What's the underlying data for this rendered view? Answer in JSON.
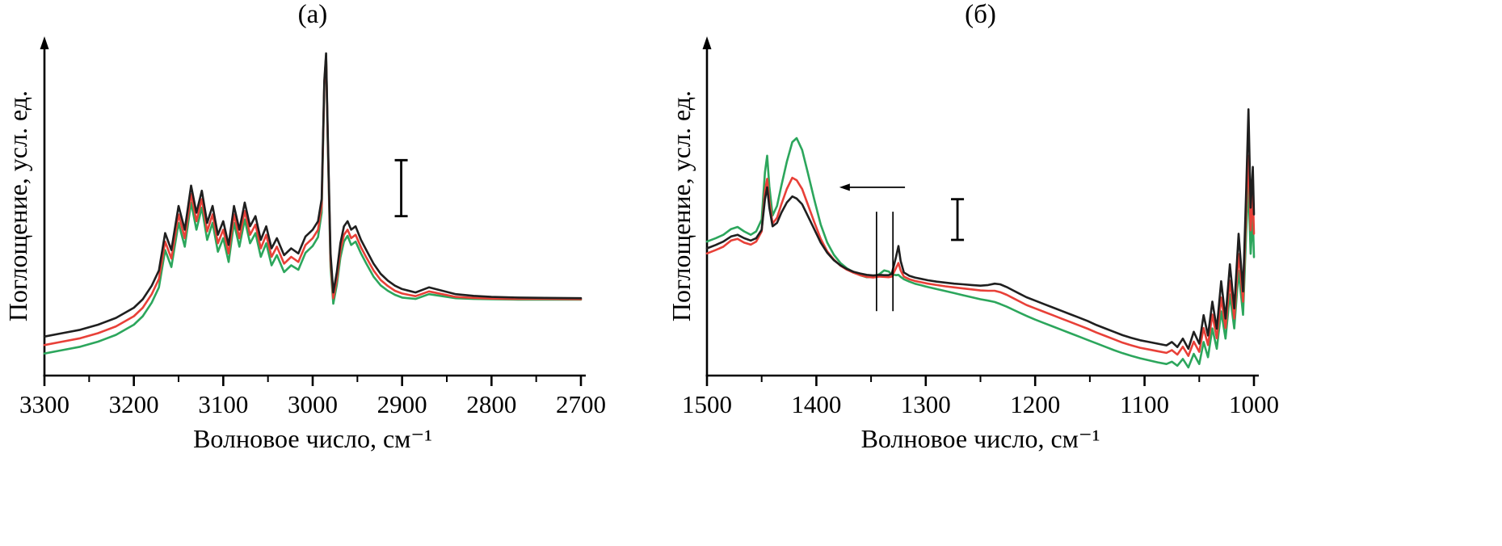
{
  "page": {
    "background": "#ffffff",
    "text_color": "#000000"
  },
  "chart_data": [
    {
      "id": "panel-a",
      "type": "line",
      "title": "(а)",
      "xlabel": "Волновое число, см⁻¹",
      "ylabel": "Поглощение, усл. ед.",
      "axis_color": "#000000",
      "x_axis": {
        "left_value": 3300,
        "right_value": 2700,
        "reversed": true,
        "major_ticks": [
          3300,
          3200,
          3100,
          3000,
          2900,
          2800,
          2700
        ],
        "tick_labels": [
          "3300",
          "3200",
          "3100",
          "3000",
          "2900",
          "2800",
          "2700"
        ],
        "minor_ticks": [
          3250,
          3150,
          3050,
          2950,
          2850,
          2750
        ]
      },
      "y_axis": {
        "ticks": [],
        "units": "arbitrary"
      },
      "x": [
        3300,
        3280,
        3260,
        3240,
        3220,
        3200,
        3190,
        3180,
        3172,
        3165,
        3158,
        3150,
        3143,
        3136,
        3130,
        3124,
        3118,
        3112,
        3106,
        3100,
        3094,
        3088,
        3082,
        3076,
        3070,
        3064,
        3058,
        3052,
        3046,
        3040,
        3032,
        3024,
        3016,
        3008,
        3000,
        2994,
        2990,
        2987,
        2985,
        2983,
        2980,
        2977,
        2973,
        2969,
        2965,
        2961,
        2957,
        2952,
        2946,
        2940,
        2932,
        2924,
        2916,
        2908,
        2900,
        2885,
        2870,
        2855,
        2840,
        2820,
        2800,
        2770,
        2740,
        2700
      ],
      "series": [
        {
          "name": "curve-green",
          "color": "#2ca65c",
          "y": [
            0.065,
            0.075,
            0.085,
            0.1,
            0.12,
            0.15,
            0.175,
            0.215,
            0.26,
            0.37,
            0.32,
            0.45,
            0.38,
            0.51,
            0.43,
            0.495,
            0.4,
            0.45,
            0.365,
            0.405,
            0.335,
            0.45,
            0.38,
            0.46,
            0.39,
            0.42,
            0.35,
            0.39,
            0.325,
            0.355,
            0.305,
            0.325,
            0.312,
            0.362,
            0.382,
            0.408,
            0.48,
            0.855,
            0.945,
            0.67,
            0.32,
            0.212,
            0.268,
            0.348,
            0.395,
            0.412,
            0.385,
            0.395,
            0.36,
            0.33,
            0.292,
            0.266,
            0.25,
            0.238,
            0.23,
            0.226,
            0.24,
            0.234,
            0.228,
            0.226,
            0.225,
            0.224,
            0.224,
            0.224
          ]
        },
        {
          "name": "curve-red",
          "color": "#e84038",
          "y": [
            0.09,
            0.1,
            0.11,
            0.125,
            0.145,
            0.175,
            0.2,
            0.24,
            0.285,
            0.395,
            0.345,
            0.475,
            0.405,
            0.535,
            0.455,
            0.52,
            0.425,
            0.475,
            0.39,
            0.43,
            0.36,
            0.475,
            0.405,
            0.485,
            0.415,
            0.445,
            0.375,
            0.415,
            0.35,
            0.38,
            0.33,
            0.35,
            0.335,
            0.385,
            0.405,
            0.43,
            0.5,
            0.86,
            0.94,
            0.685,
            0.34,
            0.228,
            0.285,
            0.368,
            0.415,
            0.43,
            0.405,
            0.415,
            0.378,
            0.348,
            0.31,
            0.282,
            0.264,
            0.25,
            0.242,
            0.234,
            0.248,
            0.24,
            0.232,
            0.229,
            0.227,
            0.226,
            0.226,
            0.225
          ]
        },
        {
          "name": "curve-black",
          "color": "#1f1f1f",
          "y": [
            0.115,
            0.125,
            0.135,
            0.15,
            0.17,
            0.2,
            0.225,
            0.265,
            0.31,
            0.42,
            0.37,
            0.5,
            0.43,
            0.56,
            0.48,
            0.545,
            0.45,
            0.5,
            0.415,
            0.455,
            0.385,
            0.5,
            0.43,
            0.51,
            0.44,
            0.47,
            0.4,
            0.44,
            0.375,
            0.405,
            0.355,
            0.375,
            0.36,
            0.41,
            0.43,
            0.455,
            0.52,
            0.87,
            0.95,
            0.7,
            0.36,
            0.245,
            0.305,
            0.39,
            0.44,
            0.455,
            0.43,
            0.44,
            0.4,
            0.37,
            0.33,
            0.3,
            0.28,
            0.265,
            0.255,
            0.245,
            0.26,
            0.25,
            0.24,
            0.235,
            0.232,
            0.23,
            0.229,
            0.228
          ]
        }
      ],
      "annotations": {
        "scale_bar": {
          "x": 2901,
          "y_from": 0.47,
          "y_to": 0.635
        }
      }
    },
    {
      "id": "panel-b",
      "type": "line",
      "title": "(б)",
      "xlabel": "Волновое число, см⁻¹",
      "ylabel": "Поглощение, усл. ед.",
      "axis_color": "#000000",
      "x_axis": {
        "left_value": 1500,
        "right_value": 1000,
        "reversed": true,
        "major_ticks": [
          1500,
          1400,
          1300,
          1200,
          1100,
          1000
        ],
        "tick_labels": [
          "1500",
          "1400",
          "1300",
          "1200",
          "1100",
          "1000"
        ],
        "minor_ticks": [
          1450,
          1350,
          1250,
          1150,
          1050
        ]
      },
      "y_axis": {
        "ticks": [],
        "units": "arbitrary"
      },
      "x": [
        1500,
        1492,
        1485,
        1478,
        1472,
        1466,
        1460,
        1455,
        1450,
        1447,
        1445,
        1443,
        1440,
        1436,
        1432,
        1427,
        1422,
        1418,
        1413,
        1408,
        1402,
        1396,
        1390,
        1384,
        1378,
        1372,
        1366,
        1360,
        1354,
        1348,
        1342,
        1338,
        1334,
        1331,
        1327,
        1325,
        1323,
        1320,
        1315,
        1310,
        1304,
        1298,
        1290,
        1282,
        1274,
        1266,
        1258,
        1250,
        1243,
        1237,
        1232,
        1226,
        1220,
        1214,
        1208,
        1200,
        1192,
        1184,
        1176,
        1168,
        1160,
        1152,
        1144,
        1136,
        1128,
        1120,
        1112,
        1104,
        1096,
        1088,
        1080,
        1075,
        1070,
        1065,
        1060,
        1055,
        1050,
        1046,
        1042,
        1038,
        1034,
        1030,
        1026,
        1022,
        1018,
        1014,
        1010,
        1007,
        1005,
        1003,
        1001,
        1000
      ],
      "series": [
        {
          "name": "curve-green",
          "color": "#2ca65c",
          "y": [
            0.395,
            0.405,
            0.415,
            0.432,
            0.438,
            0.425,
            0.415,
            0.425,
            0.46,
            0.6,
            0.648,
            0.558,
            0.472,
            0.5,
            0.56,
            0.63,
            0.688,
            0.7,
            0.665,
            0.6,
            0.52,
            0.445,
            0.392,
            0.356,
            0.332,
            0.316,
            0.305,
            0.296,
            0.29,
            0.29,
            0.3,
            0.31,
            0.307,
            0.298,
            0.296,
            0.297,
            0.291,
            0.284,
            0.277,
            0.271,
            0.266,
            0.261,
            0.255,
            0.249,
            0.243,
            0.237,
            0.231,
            0.225,
            0.221,
            0.217,
            0.211,
            0.203,
            0.194,
            0.185,
            0.176,
            0.165,
            0.155,
            0.145,
            0.135,
            0.125,
            0.115,
            0.105,
            0.095,
            0.085,
            0.075,
            0.066,
            0.058,
            0.051,
            0.045,
            0.039,
            0.034,
            0.041,
            0.029,
            0.049,
            0.024,
            0.064,
            0.034,
            0.099,
            0.054,
            0.139,
            0.079,
            0.189,
            0.109,
            0.239,
            0.139,
            0.309,
            0.179,
            0.429,
            0.559,
            0.359,
            0.469,
            0.349
          ]
        },
        {
          "name": "curve-red",
          "color": "#e84038",
          "y": [
            0.36,
            0.37,
            0.38,
            0.398,
            0.403,
            0.392,
            0.386,
            0.395,
            0.425,
            0.545,
            0.58,
            0.515,
            0.448,
            0.465,
            0.505,
            0.55,
            0.583,
            0.576,
            0.55,
            0.506,
            0.453,
            0.403,
            0.366,
            0.342,
            0.324,
            0.312,
            0.303,
            0.296,
            0.291,
            0.289,
            0.292,
            0.291,
            0.29,
            0.292,
            0.318,
            0.332,
            0.31,
            0.292,
            0.284,
            0.279,
            0.275,
            0.271,
            0.267,
            0.263,
            0.26,
            0.257,
            0.254,
            0.251,
            0.25,
            0.25,
            0.246,
            0.238,
            0.228,
            0.218,
            0.208,
            0.198,
            0.188,
            0.178,
            0.168,
            0.158,
            0.148,
            0.138,
            0.127,
            0.117,
            0.107,
            0.097,
            0.089,
            0.082,
            0.077,
            0.072,
            0.067,
            0.075,
            0.062,
            0.085,
            0.058,
            0.1,
            0.07,
            0.14,
            0.09,
            0.18,
            0.11,
            0.23,
            0.14,
            0.28,
            0.168,
            0.358,
            0.218,
            0.498,
            0.648,
            0.428,
            0.538,
            0.418
          ]
        },
        {
          "name": "curve-black",
          "color": "#1f1f1f",
          "y": [
            0.375,
            0.385,
            0.395,
            0.41,
            0.415,
            0.405,
            0.398,
            0.405,
            0.43,
            0.52,
            0.555,
            0.495,
            0.44,
            0.45,
            0.48,
            0.51,
            0.528,
            0.522,
            0.505,
            0.472,
            0.432,
            0.392,
            0.362,
            0.34,
            0.325,
            0.314,
            0.306,
            0.301,
            0.297,
            0.295,
            0.297,
            0.296,
            0.296,
            0.3,
            0.352,
            0.382,
            0.338,
            0.304,
            0.294,
            0.289,
            0.285,
            0.281,
            0.277,
            0.274,
            0.271,
            0.269,
            0.267,
            0.265,
            0.267,
            0.271,
            0.269,
            0.261,
            0.251,
            0.241,
            0.231,
            0.221,
            0.211,
            0.201,
            0.191,
            0.181,
            0.171,
            0.161,
            0.149,
            0.139,
            0.129,
            0.119,
            0.111,
            0.104,
            0.099,
            0.094,
            0.089,
            0.099,
            0.084,
            0.109,
            0.079,
            0.129,
            0.094,
            0.178,
            0.118,
            0.218,
            0.138,
            0.278,
            0.168,
            0.328,
            0.198,
            0.418,
            0.248,
            0.555,
            0.785,
            0.495,
            0.615,
            0.475
          ]
        }
      ],
      "annotations": {
        "scale_bar": {
          "x": 1271,
          "y_from": 0.4,
          "y_to": 0.52
        },
        "arrow": {
          "x_from": 1319,
          "x_to": 1379,
          "y": 0.555,
          "direction": "left-toward-higher-wavenumber"
        },
        "vertical_lines": [
          {
            "x": 1345,
            "y_from": 0.19,
            "y_to": 0.483
          },
          {
            "x": 1330,
            "y_from": 0.19,
            "y_to": 0.483
          }
        ]
      }
    }
  ]
}
